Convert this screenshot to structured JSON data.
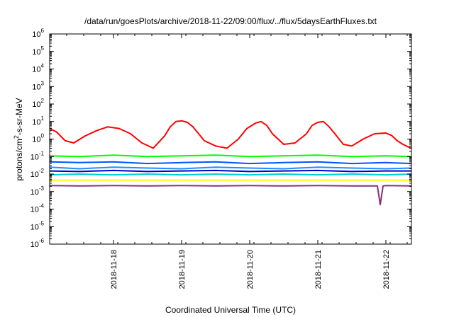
{
  "chart_data": {
    "type": "line",
    "title": "/data/run/goesPlots/archive/2018-11-22/09:00/flux/../flux/5daysEarthFluxes.txt",
    "xlabel": "Coordinated Universal Time (UTC)",
    "ylabel_parts": {
      "base": "protons/cm",
      "sup": "2",
      "rest": "-s-sr-MeV"
    },
    "yscale": "log",
    "ylim": [
      1e-06,
      1000000.0
    ],
    "xlim": [
      "2018-11-17 01:30",
      "2018-11-22 09:00"
    ],
    "xticks": [
      "2018-11-18",
      "2018-11-19",
      "2018-11-20",
      "2018-11-21",
      "2018-11-22"
    ],
    "yticks": [
      {
        "base": "10",
        "exp": "-6"
      },
      {
        "base": "10",
        "exp": "-5"
      },
      {
        "base": "10",
        "exp": "-4"
      },
      {
        "base": "10",
        "exp": "-3"
      },
      {
        "base": "10",
        "exp": "-2"
      },
      {
        "base": "10",
        "exp": "-1"
      },
      {
        "base": "10",
        "exp": "0"
      },
      {
        "base": "10",
        "exp": "1"
      },
      {
        "base": "10",
        "exp": "2"
      },
      {
        "base": "10",
        "exp": "3"
      },
      {
        "base": "10",
        "exp": "4"
      },
      {
        "base": "10",
        "exp": "5"
      },
      {
        "base": "10",
        "exp": "6"
      }
    ],
    "grid": false,
    "series": [
      {
        "color": "#ff0000",
        "x": [
          "2018-11-17 01:30",
          "2018-11-17 04:00",
          "2018-11-17 07:00",
          "2018-11-17 10:00",
          "2018-11-17 14:00",
          "2018-11-17 18:00",
          "2018-11-17 22:00",
          "2018-11-18 02:00",
          "2018-11-18 06:00",
          "2018-11-18 10:00",
          "2018-11-18 14:00",
          "2018-11-18 18:00",
          "2018-11-18 20:00",
          "2018-11-18 22:00",
          "2018-11-19 00:00",
          "2018-11-19 02:00",
          "2018-11-19 04:00",
          "2018-11-19 06:00",
          "2018-11-19 08:00",
          "2018-11-19 12:00",
          "2018-11-19 16:00",
          "2018-11-19 20:00",
          "2018-11-19 23:00",
          "2018-11-20 02:00",
          "2018-11-20 04:00",
          "2018-11-20 06:00",
          "2018-11-20 08:00",
          "2018-11-20 12:00",
          "2018-11-20 16:00",
          "2018-11-20 20:00",
          "2018-11-20 22:00",
          "2018-11-21 00:00",
          "2018-11-21 02:00",
          "2018-11-21 04:00",
          "2018-11-21 06:00",
          "2018-11-21 09:00",
          "2018-11-21 12:00",
          "2018-11-21 16:00",
          "2018-11-21 20:00",
          "2018-11-22 00:00",
          "2018-11-22 02:00",
          "2018-11-22 04:00",
          "2018-11-22 06:00",
          "2018-11-22 08:00",
          "2018-11-22 09:00"
        ],
        "values": [
          4,
          2.5,
          0.8,
          0.6,
          1.5,
          3,
          5,
          4,
          2,
          0.6,
          0.3,
          1.5,
          5,
          10,
          11,
          9,
          5,
          2,
          0.8,
          0.4,
          0.3,
          1,
          4,
          8,
          10,
          6,
          2,
          0.5,
          0.6,
          2,
          6,
          9,
          10,
          5,
          2,
          0.5,
          0.4,
          1,
          2,
          2.2,
          1.6,
          0.8,
          0.5,
          0.35,
          0.3
        ]
      },
      {
        "color": "#00ff00",
        "x": [
          "2018-11-17 01:30",
          "2018-11-17 12:00",
          "2018-11-18 00:00",
          "2018-11-18 12:00",
          "2018-11-19 00:00",
          "2018-11-19 12:00",
          "2018-11-20 00:00",
          "2018-11-20 12:00",
          "2018-11-21 00:00",
          "2018-11-21 12:00",
          "2018-11-22 00:00",
          "2018-11-22 09:00"
        ],
        "values": [
          0.11,
          0.1,
          0.12,
          0.1,
          0.11,
          0.12,
          0.1,
          0.11,
          0.12,
          0.1,
          0.11,
          0.1
        ]
      },
      {
        "color": "#0055ff",
        "x": [
          "2018-11-17 01:30",
          "2018-11-17 12:00",
          "2018-11-18 00:00",
          "2018-11-18 12:00",
          "2018-11-19 00:00",
          "2018-11-19 12:00",
          "2018-11-20 00:00",
          "2018-11-20 12:00",
          "2018-11-21 00:00",
          "2018-11-21 12:00",
          "2018-11-22 00:00",
          "2018-11-22 09:00"
        ],
        "values": [
          0.05,
          0.045,
          0.05,
          0.04,
          0.045,
          0.05,
          0.04,
          0.045,
          0.05,
          0.04,
          0.045,
          0.04
        ]
      },
      {
        "color": "#1e90ff",
        "x": [
          "2018-11-17 01:30",
          "2018-11-17 12:00",
          "2018-11-18 00:00",
          "2018-11-18 12:00",
          "2018-11-19 00:00",
          "2018-11-19 12:00",
          "2018-11-20 00:00",
          "2018-11-20 12:00",
          "2018-11-21 00:00",
          "2018-11-21 12:00",
          "2018-11-22 00:00",
          "2018-11-22 09:00"
        ],
        "values": [
          0.025,
          0.02,
          0.025,
          0.022,
          0.02,
          0.025,
          0.022,
          0.02,
          0.025,
          0.022,
          0.02,
          0.022
        ]
      },
      {
        "color": "#0000cd",
        "x": [
          "2018-11-17 01:30",
          "2018-11-17 12:00",
          "2018-11-18 00:00",
          "2018-11-18 12:00",
          "2018-11-19 00:00",
          "2018-11-19 12:00",
          "2018-11-20 00:00",
          "2018-11-20 12:00",
          "2018-11-21 00:00",
          "2018-11-21 12:00",
          "2018-11-22 00:00",
          "2018-11-22 09:00"
        ],
        "values": [
          0.015,
          0.014,
          0.016,
          0.014,
          0.015,
          0.016,
          0.014,
          0.015,
          0.016,
          0.014,
          0.015,
          0.015
        ]
      },
      {
        "color": "#00ced1",
        "x": [
          "2018-11-17 01:30",
          "2018-11-17 12:00",
          "2018-11-18 00:00",
          "2018-11-18 12:00",
          "2018-11-19 00:00",
          "2018-11-19 12:00",
          "2018-11-20 00:00",
          "2018-11-20 12:00",
          "2018-11-21 00:00",
          "2018-11-21 12:00",
          "2018-11-22 00:00",
          "2018-11-22 09:00"
        ],
        "values": [
          0.009,
          0.01,
          0.009,
          0.01,
          0.009,
          0.01,
          0.009,
          0.01,
          0.009,
          0.01,
          0.009,
          0.01
        ]
      },
      {
        "color": "#ffff00",
        "x": [
          "2018-11-17 01:30",
          "2018-11-17 12:00",
          "2018-11-18 00:00",
          "2018-11-18 12:00",
          "2018-11-19 00:00",
          "2018-11-19 12:00",
          "2018-11-20 00:00",
          "2018-11-20 12:00",
          "2018-11-21 00:00",
          "2018-11-21 12:00",
          "2018-11-22 00:00",
          "2018-11-22 09:00"
        ],
        "values": [
          0.0045,
          0.0045,
          0.0045,
          0.0045,
          0.0045,
          0.0045,
          0.0045,
          0.0045,
          0.0045,
          0.0045,
          0.0045,
          0.0045
        ]
      },
      {
        "color": "#8b2e7a",
        "x": [
          "2018-11-17 01:30",
          "2018-11-17 12:00",
          "2018-11-18 00:00",
          "2018-11-18 12:00",
          "2018-11-19 00:00",
          "2018-11-19 12:00",
          "2018-11-20 00:00",
          "2018-11-20 12:00",
          "2018-11-21 00:00",
          "2018-11-21 12:00",
          "2018-11-21 21:00",
          "2018-11-21 22:00",
          "2018-11-21 23:00",
          "2018-11-22 00:00",
          "2018-11-22 09:00"
        ],
        "values": [
          0.0022,
          0.0021,
          0.0022,
          0.0021,
          0.0022,
          0.0021,
          0.0022,
          0.0021,
          0.0022,
          0.0021,
          0.0021,
          0.00018,
          0.0021,
          0.0022,
          0.0021
        ]
      }
    ]
  }
}
